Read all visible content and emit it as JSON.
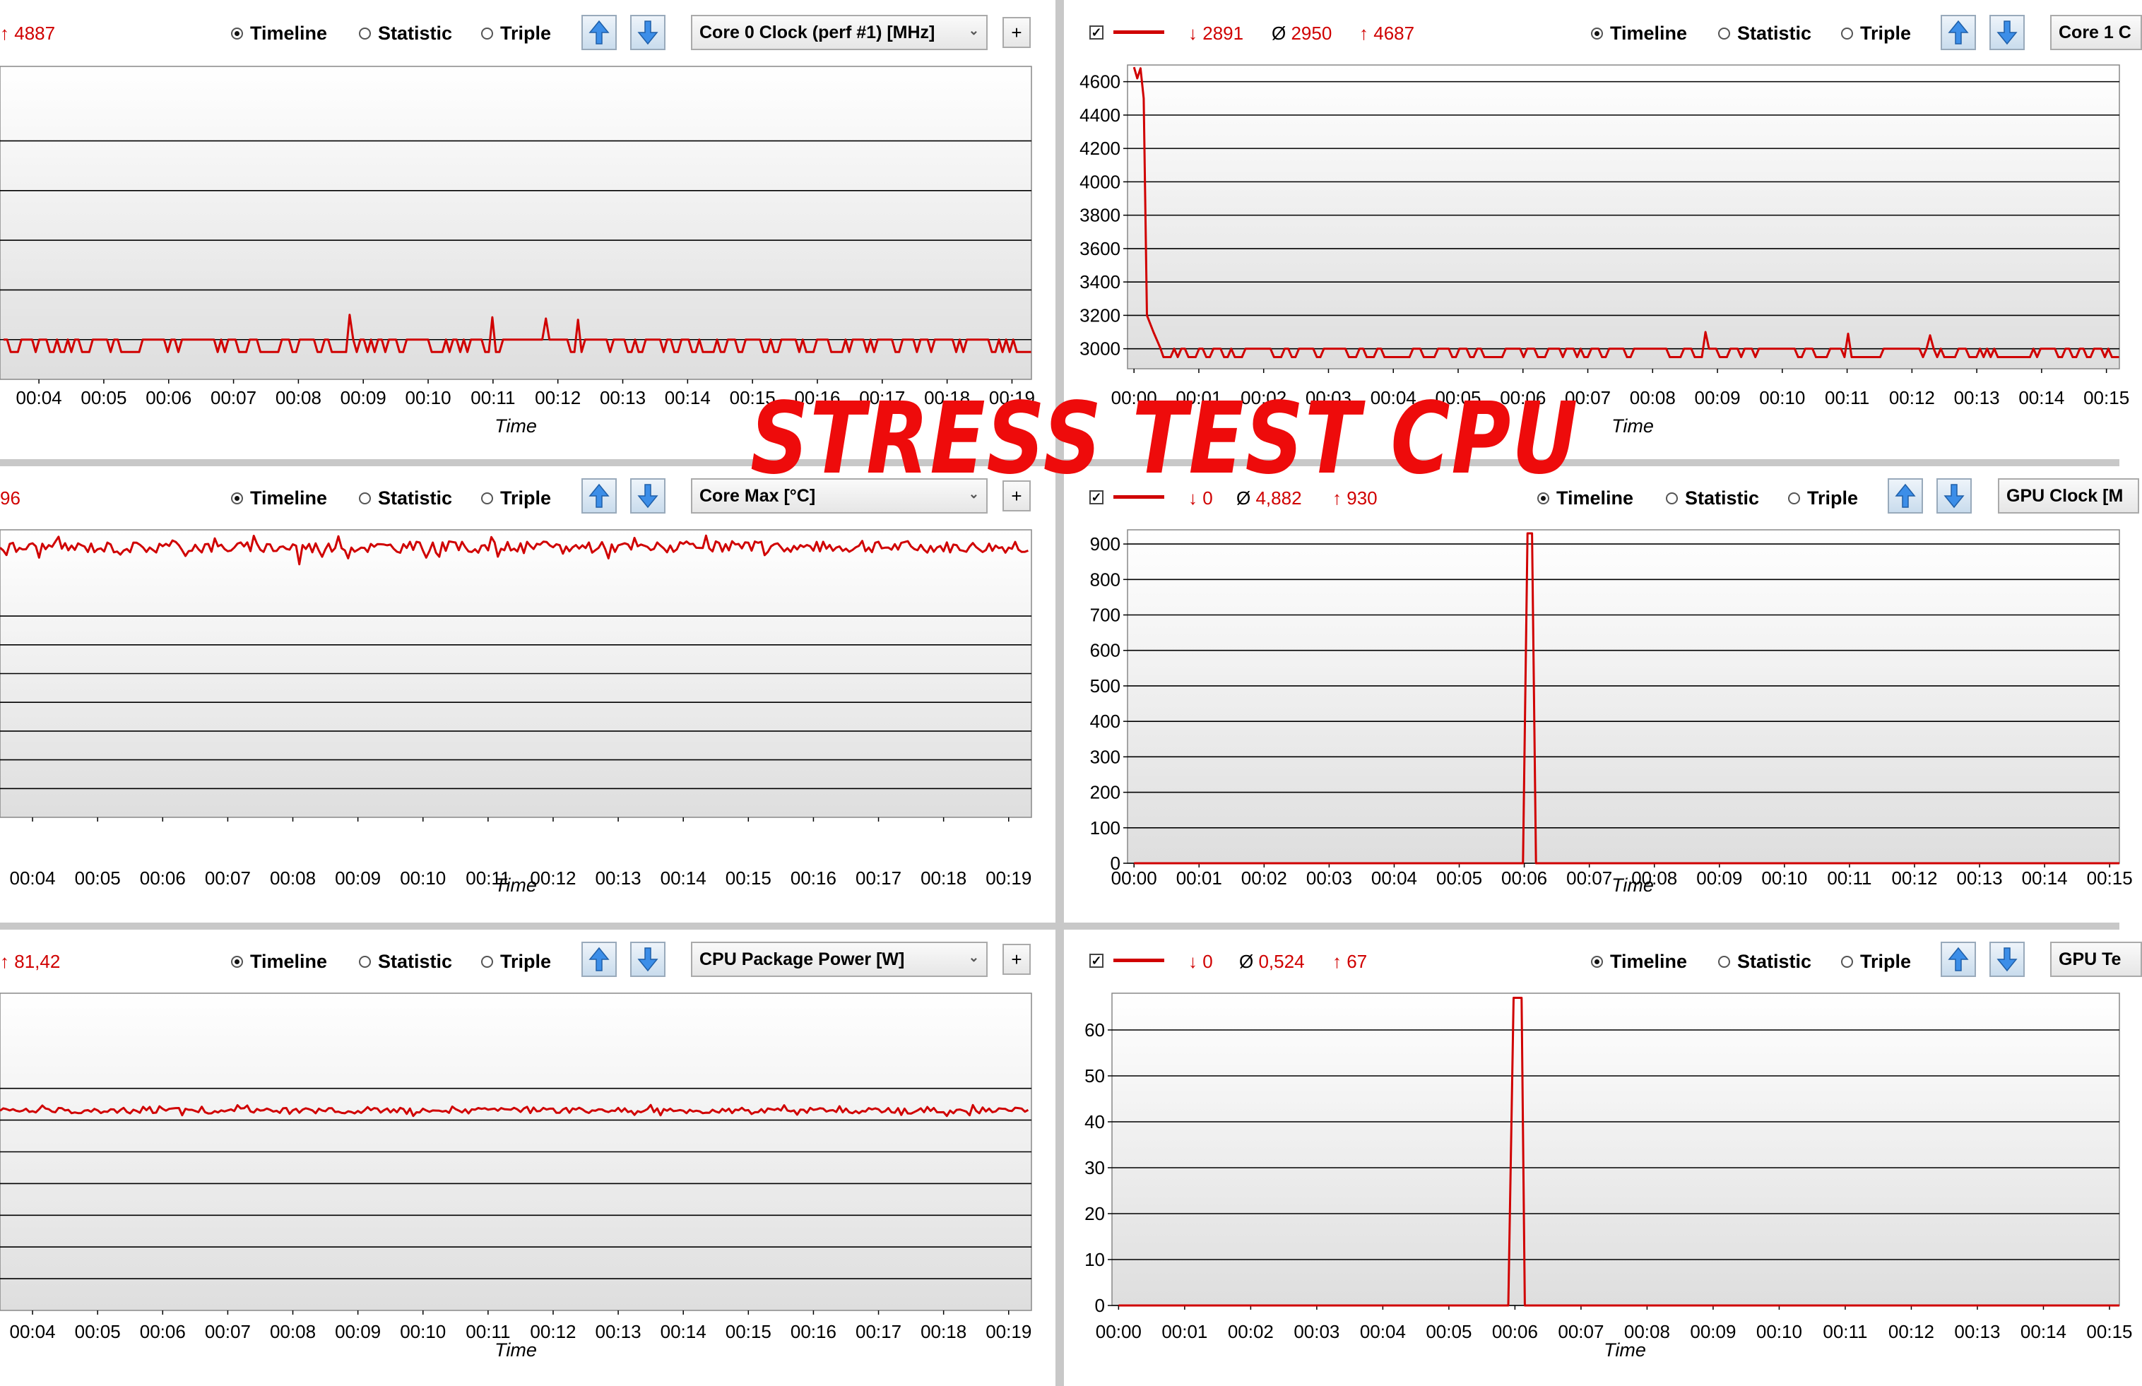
{
  "overlay_title": "STRESS TEST CPU",
  "colors": {
    "line": "#d00000",
    "grid": "#000000",
    "plot_bg_top": "#ffffff",
    "plot_bg_bottom": "#dedede"
  },
  "icons": {
    "sort_up": "arrow-up-icon",
    "sort_down": "arrow-down-icon",
    "add": "plus-icon"
  },
  "panels": [
    {
      "id": "p1",
      "stats": {
        "max": "4887"
      },
      "modes": [
        "Timeline",
        "Statistic",
        "Triple"
      ],
      "selected_mode": "Timeline",
      "sensor": "Core 0 Clock (perf #1) [MHz]",
      "plus_label": "+",
      "xlabel": "Time"
    },
    {
      "id": "p2",
      "legend_checked": true,
      "stats": {
        "min": "2891",
        "avg": "2950",
        "max": "4687"
      },
      "modes": [
        "Timeline",
        "Statistic",
        "Triple"
      ],
      "selected_mode": "Timeline",
      "sensor": "Core 1 C",
      "xlabel": "Time"
    },
    {
      "id": "p3",
      "stats": {
        "max": "96"
      },
      "modes": [
        "Timeline",
        "Statistic",
        "Triple"
      ],
      "selected_mode": "Timeline",
      "sensor": "Core Max [°C]",
      "plus_label": "+",
      "xlabel": "Time"
    },
    {
      "id": "p4",
      "legend_checked": true,
      "stats": {
        "min": "0",
        "avg": "4,882",
        "max": "930"
      },
      "modes": [
        "Timeline",
        "Statistic",
        "Triple"
      ],
      "selected_mode": "Timeline",
      "sensor": "GPU Clock [M",
      "xlabel": "Time"
    },
    {
      "id": "p5",
      "stats": {
        "max": "81,42"
      },
      "modes": [
        "Timeline",
        "Statistic",
        "Triple"
      ],
      "selected_mode": "Timeline",
      "sensor": "CPU Package Power [W]",
      "plus_label": "+",
      "xlabel": "Time"
    },
    {
      "id": "p6",
      "legend_checked": true,
      "stats": {
        "min": "0",
        "avg": "0,524",
        "max": "67"
      },
      "modes": [
        "Timeline",
        "Statistic",
        "Triple"
      ],
      "selected_mode": "Timeline",
      "sensor": "GPU Te",
      "xlabel": "Time"
    }
  ],
  "chart_data": [
    {
      "panel": "p1",
      "type": "line",
      "xlabel": "Time",
      "x_ticks": [
        "00:04",
        "00:05",
        "00:06",
        "00:07",
        "00:08",
        "00:09",
        "00:10",
        "00:11",
        "00:12",
        "00:13",
        "00:14",
        "00:15",
        "00:16",
        "00:17",
        "00:18",
        "00:19"
      ],
      "x_range": [
        3.4,
        19.3
      ],
      "y_ticks": [],
      "ylim": [
        2840,
        4100
      ],
      "gridlines_y": [
        3000,
        3200,
        3400,
        3600,
        3800
      ],
      "series": [
        {
          "baseline": 2950,
          "high": 3000,
          "spikes": [
            [
              8.8,
              3100
            ],
            [
              11.0,
              3090
            ],
            [
              11.8,
              3085
            ],
            [
              12.3,
              3080
            ]
          ]
        }
      ]
    },
    {
      "panel": "p2",
      "type": "line",
      "xlabel": "Time",
      "x_ticks": [
        "00:00",
        "00:01",
        "00:02",
        "00:03",
        "00:04",
        "00:05",
        "00:06",
        "00:07",
        "00:08",
        "00:09",
        "00:10",
        "00:11",
        "00:12",
        "00:13",
        "00:14",
        "00:15"
      ],
      "x_range": [
        -0.1,
        15.2
      ],
      "y_ticks": [
        3000,
        3200,
        3400,
        3600,
        3800,
        4000,
        4200,
        4400,
        4600
      ],
      "ylim": [
        2880,
        4700
      ],
      "series": [
        {
          "baseline": 2950,
          "high": 3000,
          "start": [
            [
              0.0,
              4687
            ],
            [
              0.05,
              4620
            ],
            [
              0.1,
              4680
            ],
            [
              0.15,
              4500
            ],
            [
              0.2,
              3200
            ],
            [
              0.3,
              3100
            ],
            [
              0.4,
              3010
            ]
          ],
          "spikes": [
            [
              8.8,
              3100
            ],
            [
              11.0,
              3090
            ],
            [
              12.3,
              3080
            ]
          ]
        }
      ]
    },
    {
      "panel": "p3",
      "type": "line",
      "xlabel": "Time",
      "x_ticks": [
        "00:04",
        "00:05",
        "00:06",
        "00:07",
        "00:08",
        "00:09",
        "00:10",
        "00:11",
        "00:12",
        "00:13",
        "00:14",
        "00:15",
        "00:16",
        "00:17",
        "00:18",
        "00:19"
      ],
      "x_range": [
        3.5,
        19.35
      ],
      "y_ticks": [],
      "ylim": [
        0,
        100
      ],
      "gridlines_y": [
        10,
        20,
        30,
        40,
        50,
        60,
        70
      ],
      "series": [
        {
          "baseline": 94,
          "variation": 4,
          "dip": [
            [
              8.1,
              88
            ]
          ]
        }
      ]
    },
    {
      "panel": "p4",
      "type": "line",
      "xlabel": "Time",
      "x_ticks": [
        "00:00",
        "00:01",
        "00:02",
        "00:03",
        "00:04",
        "00:05",
        "00:06",
        "00:07",
        "00:08",
        "00:09",
        "00:10",
        "00:11",
        "00:12",
        "00:13",
        "00:14",
        "00:15"
      ],
      "x_range": [
        -0.1,
        15.15
      ],
      "y_ticks": [
        0,
        100,
        200,
        300,
        400,
        500,
        600,
        700,
        800,
        900
      ],
      "ylim": [
        0,
        940
      ],
      "series": [
        {
          "points": [
            [
              0,
              0
            ],
            [
              5.98,
              0
            ],
            [
              6.05,
              930
            ],
            [
              6.12,
              930
            ],
            [
              6.18,
              0
            ],
            [
              15.15,
              0
            ]
          ]
        }
      ]
    },
    {
      "panel": "p5",
      "type": "line",
      "xlabel": "Time",
      "x_ticks": [
        "00:04",
        "00:05",
        "00:06",
        "00:07",
        "00:08",
        "00:09",
        "00:10",
        "00:11",
        "00:12",
        "00:13",
        "00:14",
        "00:15",
        "00:16",
        "00:17",
        "00:18",
        "00:19"
      ],
      "x_range": [
        3.5,
        19.35
      ],
      "y_ticks": [],
      "ylim": [
        0,
        100
      ],
      "gridlines_y": [
        10,
        20,
        30,
        40,
        50,
        60,
        70
      ],
      "series": [
        {
          "baseline": 63,
          "variation": 1.8
        }
      ]
    },
    {
      "panel": "p6",
      "type": "line",
      "xlabel": "Time",
      "x_ticks": [
        "00:00",
        "00:01",
        "00:02",
        "00:03",
        "00:04",
        "00:05",
        "00:06",
        "00:07",
        "00:08",
        "00:09",
        "00:10",
        "00:11",
        "00:12",
        "00:13",
        "00:14",
        "00:15"
      ],
      "x_range": [
        -0.1,
        15.15
      ],
      "y_ticks": [
        0,
        10,
        20,
        30,
        40,
        50,
        60
      ],
      "ylim": [
        0,
        68
      ],
      "series": [
        {
          "points": [
            [
              0,
              0
            ],
            [
              5.9,
              0
            ],
            [
              5.98,
              67
            ],
            [
              6.1,
              67
            ],
            [
              6.15,
              0
            ],
            [
              15.15,
              0
            ]
          ]
        }
      ]
    }
  ]
}
